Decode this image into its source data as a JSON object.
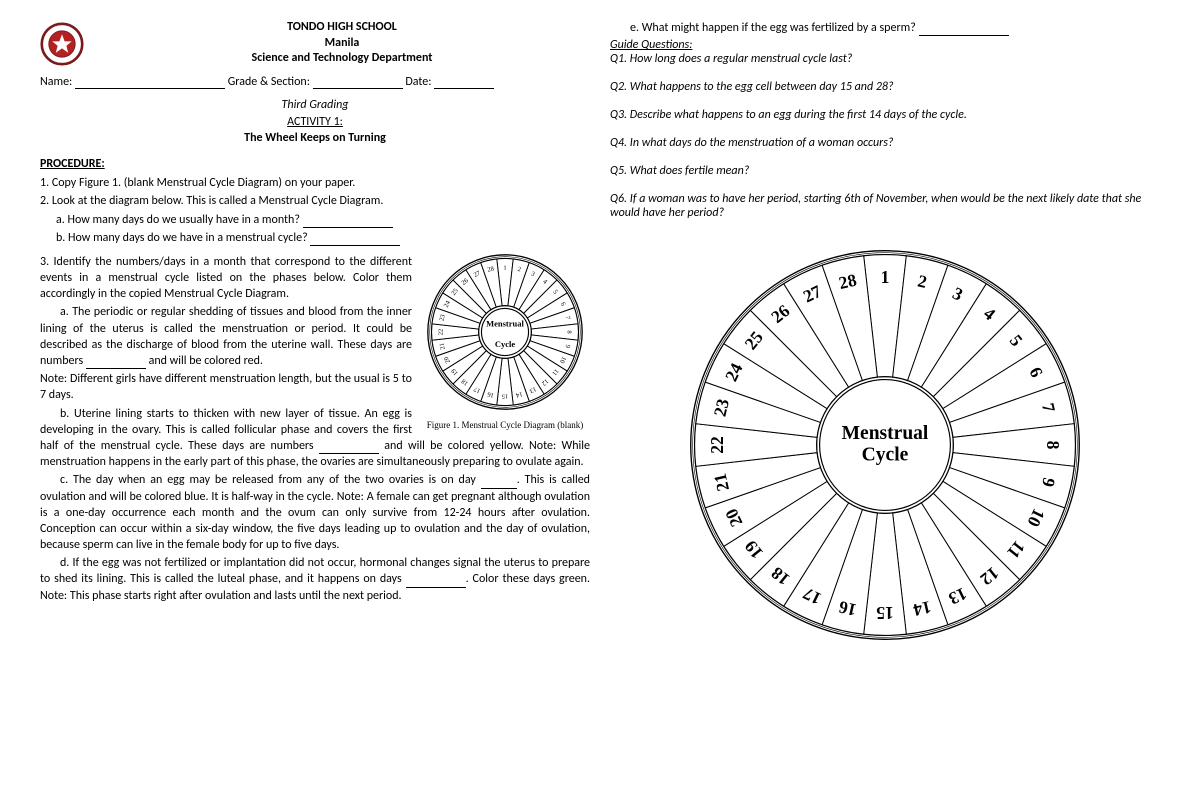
{
  "school": {
    "name": "TONDO HIGH SCHOOL",
    "city": "Manila",
    "dept": "Science and Technology Department"
  },
  "form": {
    "name_label": "Name:",
    "grade_label": "Grade & Section:",
    "date_label": "Date:"
  },
  "activity": {
    "grading": "Third Grading",
    "num": "ACTIVITY 1:",
    "title": "The Wheel Keeps on Turning"
  },
  "procedure_h": "PROCEDURE:",
  "proc": {
    "p1": "1. Copy Figure 1. (blank Menstrual Cycle Diagram) on your paper.",
    "p2": "2. Look at the diagram below. This is called a Menstrual Cycle Diagram.",
    "p2a": "a. How many days do we usually have in a month?",
    "p2b": "b. How many days do we have in a menstrual cycle?",
    "p3": "3. Identify the numbers/days in a month that correspond to the different events in a menstrual cycle listed on the phases below. Color them accordingly in the copied Menstrual Cycle Diagram.",
    "p3a_1": "a. The periodic or regular shedding of tissues and blood from the inner lining of the uterus is called the menstruation or period. It could be described as the discharge of blood from the uterine wall. These days are numbers",
    "p3a_2": "and will be colored red.",
    "p3a_note": "Note: Different girls have different menstruation length, but the usual is 5 to 7 days.",
    "p3b_1": "b. Uterine lining starts to thicken with new layer of tissue. An egg is developing in the ovary. This is called follicular phase and covers the first half of the menstrual cycle. These days are numbers",
    "p3b_2": "and will be colored yellow. Note: While menstruation happens in the early part of this phase, the ovaries are simultaneously preparing to ovulate again.",
    "p3c_1": "c. The day when an egg may be released from any of the two ovaries is on day",
    "p3c_2": ". This is called ovulation and will be colored blue. It is half-way in the cycle. Note: A female can get pregnant although ovulation is a one-day occurrence each month and the ovum can only survive from 12-24 hours after ovulation. Conception can occur within a six-day window, the five days leading up to ovulation and the day of ovulation, because sperm can live in the female body for up to five days.",
    "p3d_1": "d. If the egg was not fertilized or implantation did not occur, hormonal changes signal the uterus to prepare to shed its lining. This is called the luteal phase, and it happens on days",
    "p3d_2": ". Color these days green. Note: This phase starts right after ovulation and lasts until the next period.",
    "p3e": "e. What might happen if the egg was fertilized by a sperm?"
  },
  "guide_h": "Guide Questions:",
  "guide": {
    "q1": "Q1.  How long does a regular menstrual cycle last?",
    "q2": "Q2.  What happens to the egg cell between day 15 and 28?",
    "q3": "Q3.  Describe what happens to an egg during the first 14 days of the cycle.",
    "q4": "Q4. In what days do the menstruation of a woman occurs?",
    "q5": "Q5.  What does fertile mean?",
    "q6": "Q6.  If a woman was to have her period, starting 6th of November, when would be the next likely date that she would have her period?"
  },
  "figure": {
    "caption": "Figure 1. Menstrual Cycle Diagram (blank)",
    "center_l1": "Menstrual",
    "center_l2": "Cycle"
  },
  "wheel": {
    "segments": 28,
    "outer_r": 195,
    "inner_r": 70,
    "label_r": 170,
    "colors": {
      "stroke": "#000000",
      "fill": "#ffffff"
    }
  },
  "wheel_small": {
    "segments": 28,
    "outer_r": 78,
    "inner_r": 28,
    "label_r": 68
  }
}
